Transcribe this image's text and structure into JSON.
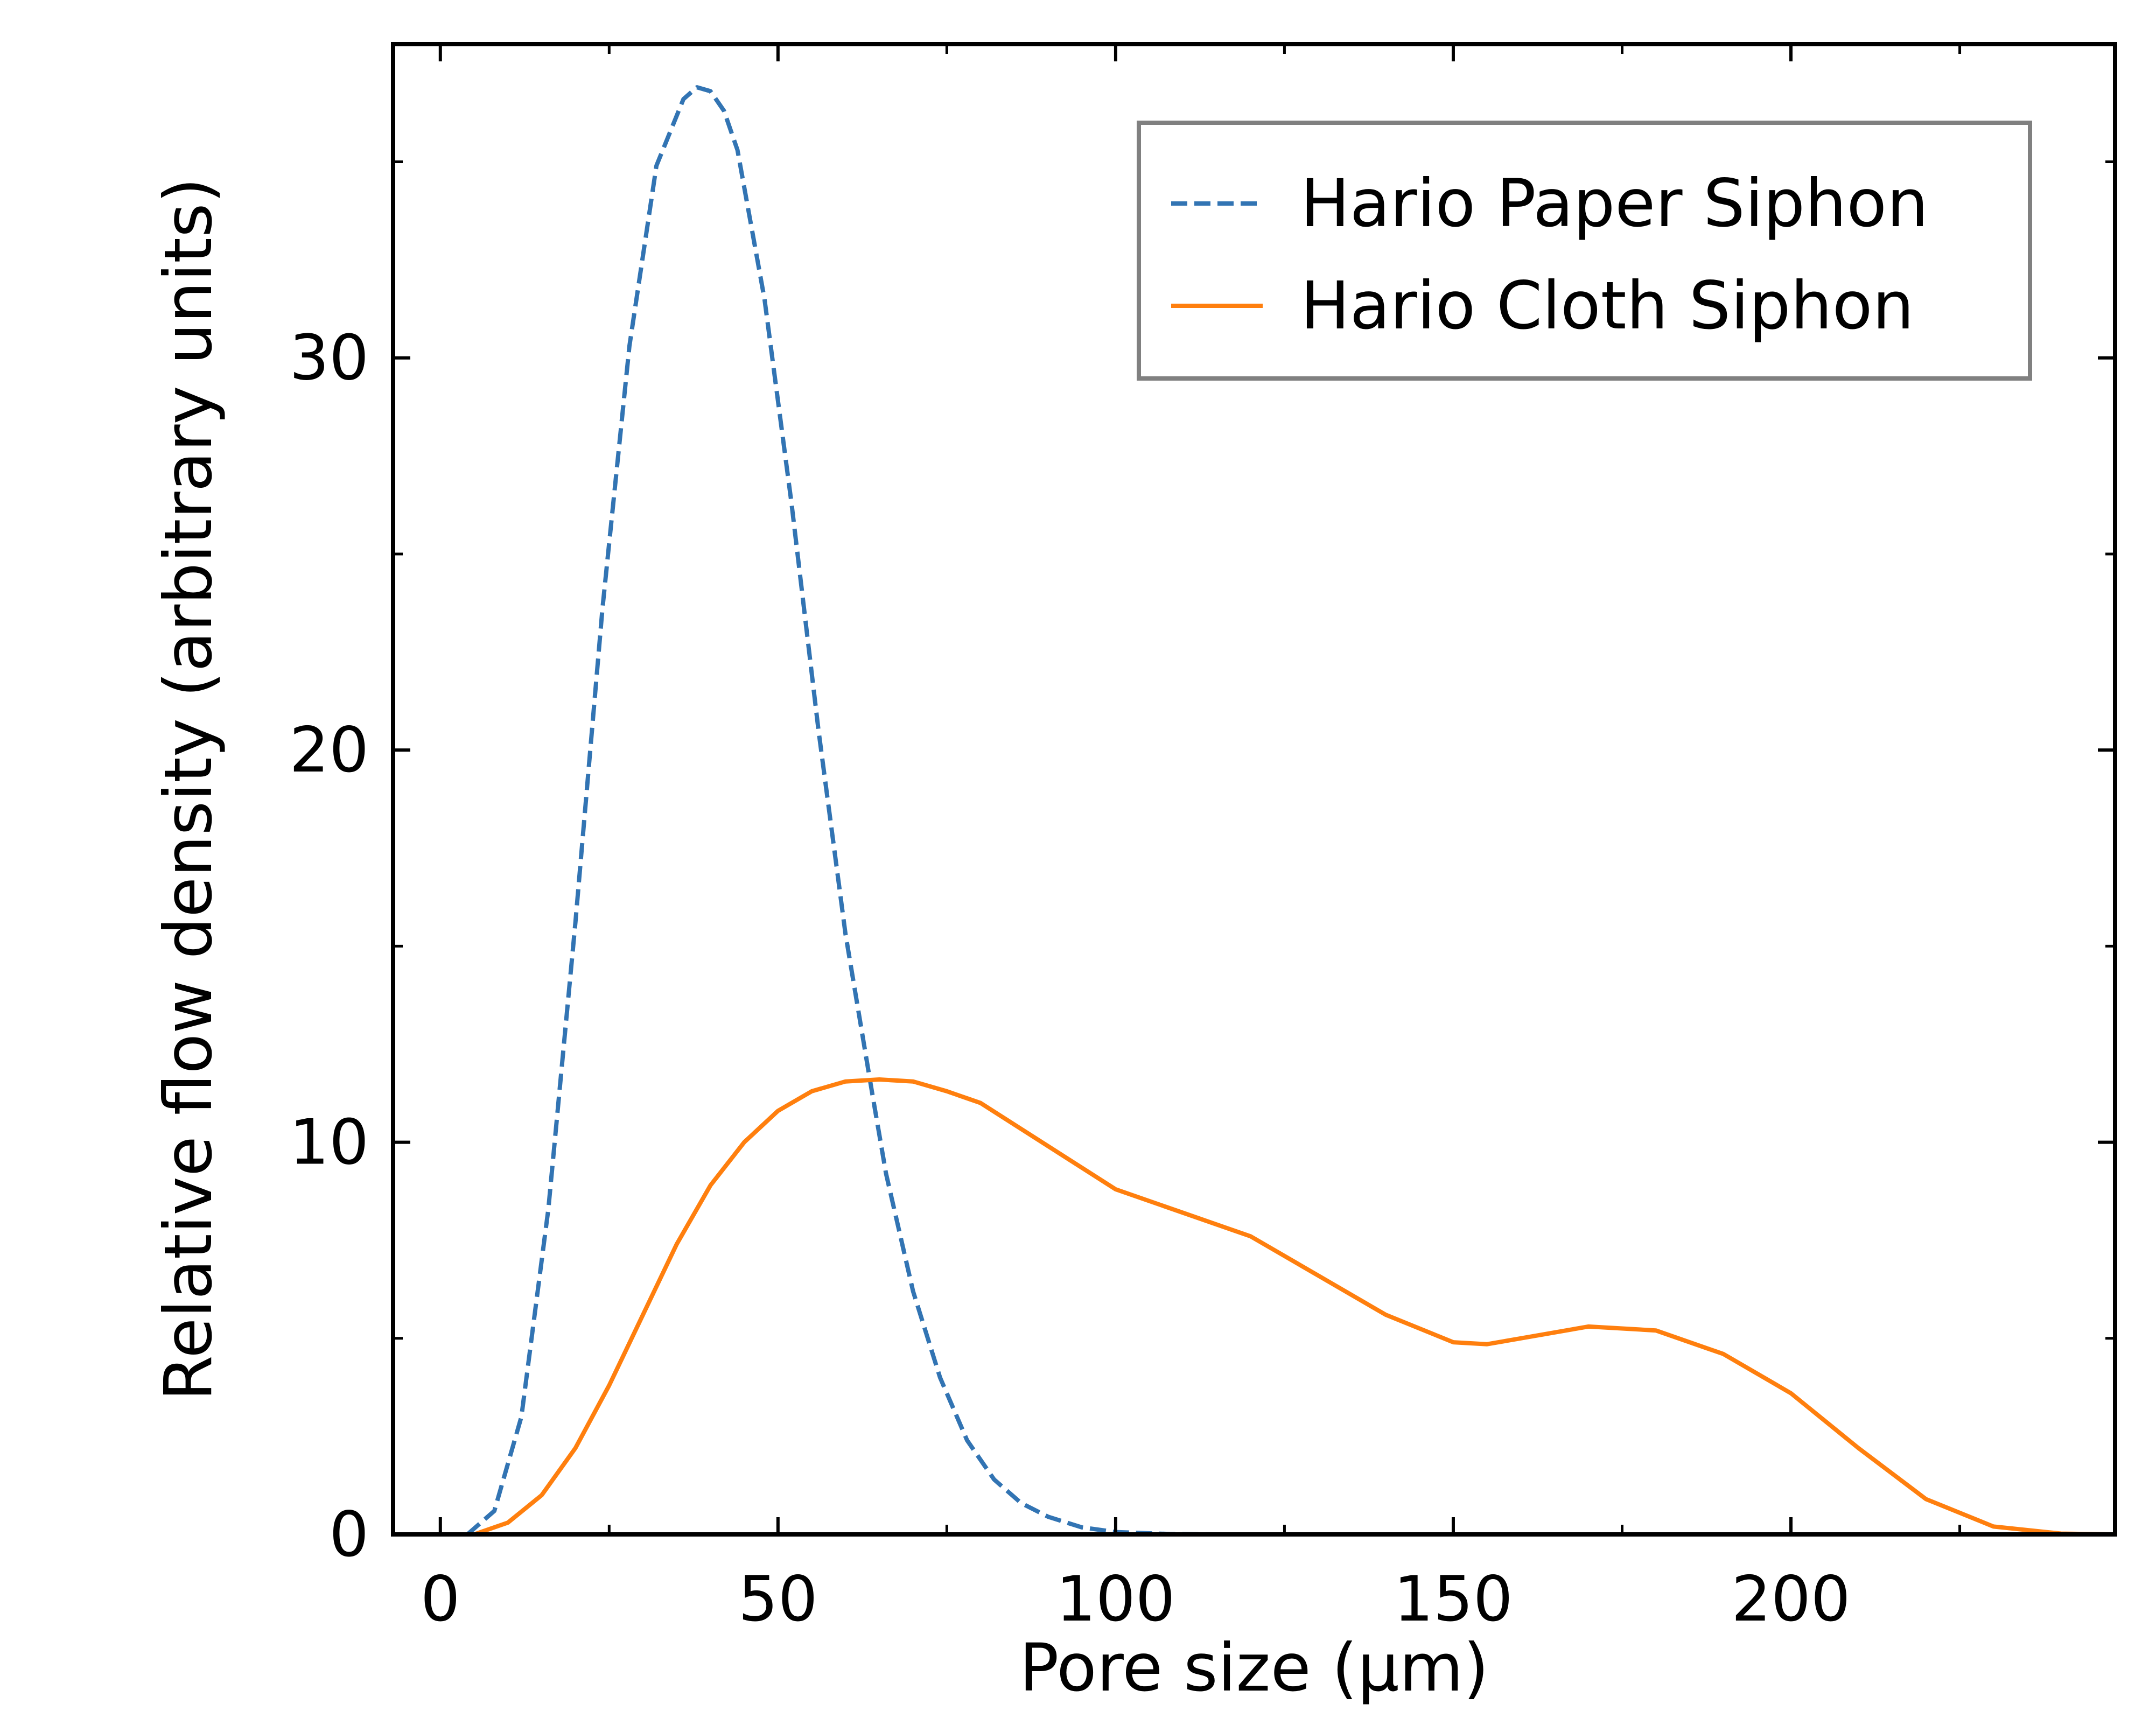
{
  "chart_data": {
    "type": "line",
    "title": "",
    "xlabel": "Pore size (μm)",
    "ylabel": "Relative flow density (arbitrary units)",
    "xlim": [
      -7,
      248
    ],
    "ylim": [
      0,
      38
    ],
    "x_ticks": [
      0,
      50,
      100,
      150,
      200
    ],
    "y_ticks": [
      0,
      10,
      20,
      30
    ],
    "grid": false,
    "legend_position": "top-right",
    "series": [
      {
        "name": "Hario Paper Siphon",
        "color": "#3274b3",
        "style": "dashed",
        "x": [
          4,
          8,
          12,
          16,
          20,
          24,
          28,
          32,
          36,
          38,
          40,
          42,
          44,
          48,
          52,
          56,
          60,
          64,
          66,
          70,
          74,
          78,
          82,
          86,
          90,
          95,
          100,
          108,
          115
        ],
        "y": [
          0.0,
          0.6,
          3.0,
          8.3,
          15.6,
          23.6,
          30.3,
          34.9,
          36.6,
          36.9,
          36.8,
          36.3,
          35.3,
          31.5,
          26.3,
          20.5,
          15.3,
          11.2,
          9.2,
          6.2,
          4.0,
          2.4,
          1.4,
          0.8,
          0.45,
          0.18,
          0.06,
          0.01,
          0.0
        ]
      },
      {
        "name": "Hario Cloth Siphon",
        "color": "#ff7f0e",
        "style": "solid",
        "x": [
          5,
          10,
          15,
          20,
          25,
          30,
          35,
          40,
          45,
          50,
          55,
          60,
          65,
          70,
          75,
          80,
          90,
          100,
          110,
          120,
          130,
          140,
          150,
          155,
          160,
          170,
          180,
          190,
          200,
          210,
          220,
          230,
          240,
          248
        ],
        "y": [
          0.0,
          0.3,
          1.0,
          2.2,
          3.8,
          5.6,
          7.4,
          8.9,
          10.0,
          10.8,
          11.3,
          11.55,
          11.6,
          11.55,
          11.3,
          11.0,
          9.9,
          8.8,
          8.2,
          7.6,
          6.6,
          5.6,
          4.9,
          4.85,
          5.0,
          5.3,
          5.2,
          4.6,
          3.6,
          2.2,
          0.9,
          0.2,
          0.02,
          0.0
        ]
      }
    ]
  }
}
